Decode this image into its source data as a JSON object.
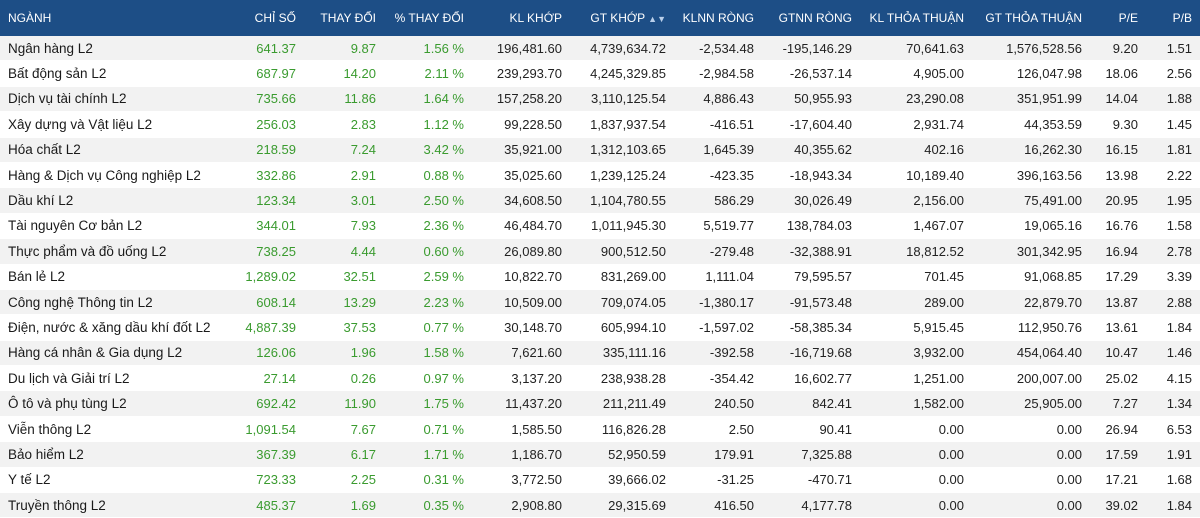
{
  "colors": {
    "header_bg": "#1d4e86",
    "header_text": "#ffffff",
    "up": "#3a9b2f",
    "stripe": "#f2f2f2"
  },
  "columns": [
    {
      "key": "nganh",
      "label": "NGÀNH"
    },
    {
      "key": "chi_so",
      "label": "CHỈ SỐ"
    },
    {
      "key": "thay_doi",
      "label": "THAY ĐỔI"
    },
    {
      "key": "pct",
      "label": "% THAY ĐỔI"
    },
    {
      "key": "kl_khop",
      "label": "KL KHỚP"
    },
    {
      "key": "gt_khop",
      "label": "GT KHỚP",
      "sort_icon": "sort-icon"
    },
    {
      "key": "klnn",
      "label": "KLNN RÒNG"
    },
    {
      "key": "gtnn",
      "label": "GTNN RÒNG"
    },
    {
      "key": "kl_tt",
      "label": "KL THỎA THUẬN"
    },
    {
      "key": "gt_tt",
      "label": "GT THỎA THUẬN"
    },
    {
      "key": "pe",
      "label": "P/E"
    },
    {
      "key": "pb",
      "label": "P/B"
    }
  ],
  "sort_icon_glyph": "▲▼",
  "rows": [
    [
      "Ngân hàng L2",
      "641.37",
      "9.87",
      "1.56 %",
      "196,481.60",
      "4,739,634.72",
      "-2,534.48",
      "-195,146.29",
      "70,641.63",
      "1,576,528.56",
      "9.20",
      "1.51"
    ],
    [
      "Bất động sản L2",
      "687.97",
      "14.20",
      "2.11 %",
      "239,293.70",
      "4,245,329.85",
      "-2,984.58",
      "-26,537.14",
      "4,905.00",
      "126,047.98",
      "18.06",
      "2.56"
    ],
    [
      "Dịch vụ tài chính L2",
      "735.66",
      "11.86",
      "1.64 %",
      "157,258.20",
      "3,110,125.54",
      "4,886.43",
      "50,955.93",
      "23,290.08",
      "351,951.99",
      "14.04",
      "1.88"
    ],
    [
      "Xây dựng và Vật liệu L2",
      "256.03",
      "2.83",
      "1.12 %",
      "99,228.50",
      "1,837,937.54",
      "-416.51",
      "-17,604.40",
      "2,931.74",
      "44,353.59",
      "9.30",
      "1.45"
    ],
    [
      "Hóa chất L2",
      "218.59",
      "7.24",
      "3.42 %",
      "35,921.00",
      "1,312,103.65",
      "1,645.39",
      "40,355.62",
      "402.16",
      "16,262.30",
      "16.15",
      "1.81"
    ],
    [
      "Hàng & Dịch vụ Công nghiệp L2",
      "332.86",
      "2.91",
      "0.88 %",
      "35,025.60",
      "1,239,125.24",
      "-423.35",
      "-18,943.34",
      "10,189.40",
      "396,163.56",
      "13.98",
      "2.22"
    ],
    [
      "Dầu khí L2",
      "123.34",
      "3.01",
      "2.50 %",
      "34,608.50",
      "1,104,780.55",
      "586.29",
      "30,026.49",
      "2,156.00",
      "75,491.00",
      "20.95",
      "1.95"
    ],
    [
      "Tài nguyên Cơ bản L2",
      "344.01",
      "7.93",
      "2.36 %",
      "46,484.70",
      "1,011,945.30",
      "5,519.77",
      "138,784.03",
      "1,467.07",
      "19,065.16",
      "16.76",
      "1.58"
    ],
    [
      "Thực phẩm và đồ uống L2",
      "738.25",
      "4.44",
      "0.60 %",
      "26,089.80",
      "900,512.50",
      "-279.48",
      "-32,388.91",
      "18,812.52",
      "301,342.95",
      "16.94",
      "2.78"
    ],
    [
      "Bán lẻ L2",
      "1,289.02",
      "32.51",
      "2.59 %",
      "10,822.70",
      "831,269.00",
      "1,111.04",
      "79,595.57",
      "701.45",
      "91,068.85",
      "17.29",
      "3.39"
    ],
    [
      "Công nghệ Thông tin L2",
      "608.14",
      "13.29",
      "2.23 %",
      "10,509.00",
      "709,074.05",
      "-1,380.17",
      "-91,573.48",
      "289.00",
      "22,879.70",
      "13.87",
      "2.88"
    ],
    [
      "Điện, nước & xăng dầu khí đốt L2",
      "4,887.39",
      "37.53",
      "0.77 %",
      "30,148.70",
      "605,994.10",
      "-1,597.02",
      "-58,385.34",
      "5,915.45",
      "112,950.76",
      "13.61",
      "1.84"
    ],
    [
      "Hàng cá nhân & Gia dụng L2",
      "126.06",
      "1.96",
      "1.58 %",
      "7,621.60",
      "335,111.16",
      "-392.58",
      "-16,719.68",
      "3,932.00",
      "454,064.40",
      "10.47",
      "1.46"
    ],
    [
      "Du lịch và Giải trí L2",
      "27.14",
      "0.26",
      "0.97 %",
      "3,137.20",
      "238,938.28",
      "-354.42",
      "16,602.77",
      "1,251.00",
      "200,007.00",
      "25.02",
      "4.15"
    ],
    [
      "Ô tô và phụ tùng L2",
      "692.42",
      "11.90",
      "1.75 %",
      "11,437.20",
      "211,211.49",
      "240.50",
      "842.41",
      "1,582.00",
      "25,905.00",
      "7.27",
      "1.34"
    ],
    [
      "Viễn thông L2",
      "1,091.54",
      "7.67",
      "0.71 %",
      "1,585.50",
      "116,826.28",
      "2.50",
      "90.41",
      "0.00",
      "0.00",
      "26.94",
      "6.53"
    ],
    [
      "Bảo hiểm L2",
      "367.39",
      "6.17",
      "1.71 %",
      "1,186.70",
      "52,950.59",
      "179.91",
      "7,325.88",
      "0.00",
      "0.00",
      "17.59",
      "1.91"
    ],
    [
      "Y tế L2",
      "723.33",
      "2.25",
      "0.31 %",
      "3,772.50",
      "39,666.02",
      "-31.25",
      "-470.71",
      "0.00",
      "0.00",
      "17.21",
      "1.68"
    ],
    [
      "Truyền thông L2",
      "485.37",
      "1.69",
      "0.35 %",
      "2,908.80",
      "29,315.69",
      "416.50",
      "4,177.78",
      "0.00",
      "0.00",
      "39.02",
      "1.84"
    ]
  ]
}
